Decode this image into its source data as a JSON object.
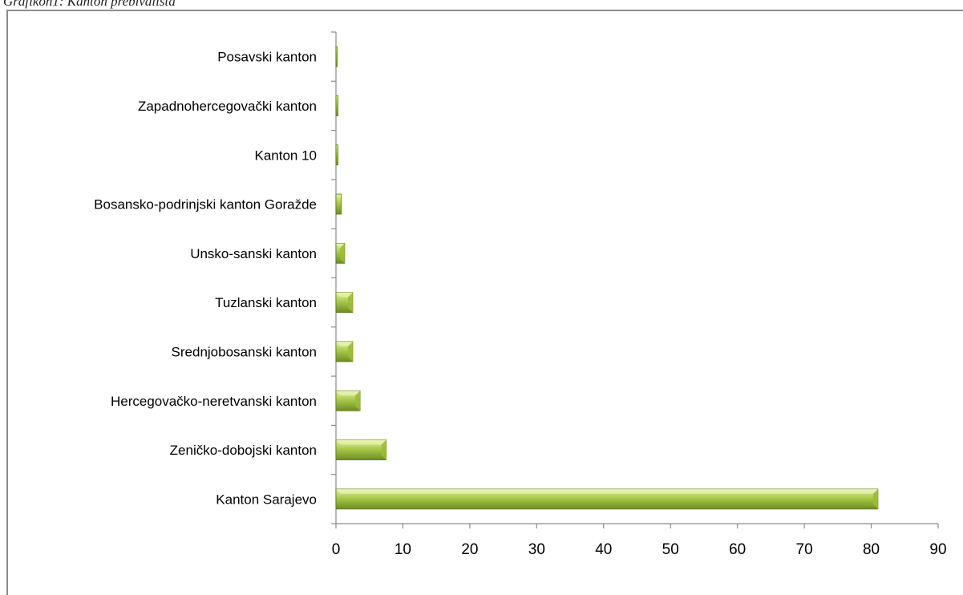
{
  "caption": "Grafikon1: Kanton prebivališta",
  "chart_data": {
    "type": "bar",
    "orientation": "horizontal",
    "title": "",
    "xlabel": "",
    "ylabel": "",
    "xlim": [
      0,
      90
    ],
    "xticks": [
      0,
      10,
      20,
      30,
      40,
      50,
      60,
      70,
      80,
      90
    ],
    "categories": [
      "Kanton Sarajevo",
      "Zeničko-dobojski kanton",
      "Hercegovačko-neretvanski kanton",
      "Srednjobosanski kanton",
      "Tuzlanski kanton",
      "Unsko-sanski kanton",
      "Bosansko-podrinjski kanton Goražde",
      "Kanton 10",
      "Zapadnohercegovački kanton",
      "Posavski kanton"
    ],
    "values": [
      81,
      7.5,
      3.6,
      2.5,
      2.5,
      1.3,
      0.8,
      0.3,
      0.3,
      0.1
    ],
    "grid": false,
    "legend": "none",
    "colors": {
      "bar_light": "#c8e07a",
      "bar_mid": "#9bbb3b",
      "bar_dark": "#5f7a1c",
      "axis": "#8c8c8c"
    }
  }
}
